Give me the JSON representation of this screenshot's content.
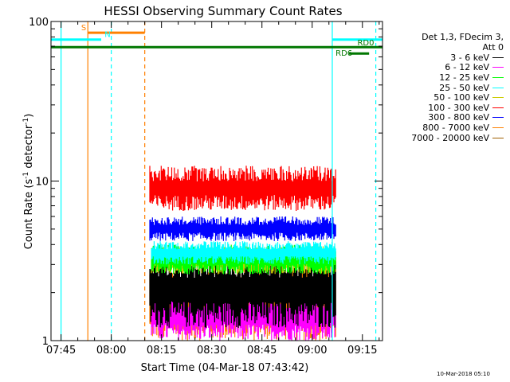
{
  "chart_data": {
    "type": "line",
    "title": "HESSI Observing Summary Count Rates",
    "xlabel": "Start Time (04-Mar-18 07:43:42)",
    "ylabel_main": "Count Rate (s",
    "ylabel_sup1": "-1",
    "ylabel_mid": " detector",
    "ylabel_sup2": "-1",
    "ylabel_end": ")",
    "yscale": "log",
    "ylim": [
      1,
      100
    ],
    "xlim_minutes": [
      -3,
      96
    ],
    "x_ticks": [
      {
        "label": "07:45",
        "min": 0
      },
      {
        "label": "08:00",
        "min": 15
      },
      {
        "label": "08:15",
        "min": 30
      },
      {
        "label": "08:30",
        "min": 45
      },
      {
        "label": "08:45",
        "min": 60
      },
      {
        "label": "09:00",
        "min": 75
      },
      {
        "label": "09:15",
        "min": 90
      }
    ],
    "y_ticks": [
      {
        "label": "1",
        "value": 1
      },
      {
        "label": "10",
        "value": 10
      },
      {
        "label": "100",
        "value": 100
      }
    ],
    "legend_header": [
      "Det 1,3, FDecim 3,",
      "Att 0"
    ],
    "series": [
      {
        "name": "3 - 6 keV",
        "color": "#000000",
        "start": 26.5,
        "end": 82,
        "lo": 1.2,
        "hi": 3.6
      },
      {
        "name": "6 - 12 keV",
        "color": "#ff00ff",
        "start": 27,
        "end": 82,
        "lo": 1.0,
        "hi": 2.0
      },
      {
        "name": "12 - 25 keV",
        "color": "#00ff00",
        "start": 27,
        "end": 82,
        "lo": 2.6,
        "hi": 4.0
      },
      {
        "name": "25 - 50 keV",
        "color": "#00ffff",
        "start": 27,
        "end": 82,
        "lo": 3.0,
        "hi": 4.2
      },
      {
        "name": "50 - 100 keV",
        "color": "#cccc00",
        "start": 27,
        "end": 82,
        "lo": 2.6,
        "hi": 3.9
      },
      {
        "name": "100 - 300 keV",
        "color": "#ff0000",
        "start": 26.5,
        "end": 82,
        "lo": 6.5,
        "hi": 12.5
      },
      {
        "name": "300 - 800 keV",
        "color": "#0000ff",
        "start": 26.5,
        "end": 82,
        "lo": 4.2,
        "hi": 6.0
      },
      {
        "name": "800 - 7000 keV",
        "color": "#ff8000",
        "start": 26.5,
        "end": 82,
        "lo": 1.0,
        "hi": 2.9
      },
      {
        "name": "7000 - 20000 keV",
        "color": "#a06000",
        "start": null,
        "end": null,
        "lo": null,
        "hi": null
      }
    ],
    "flags": [
      {
        "name": "S",
        "color": "#ff8000",
        "y": 85,
        "start": 8,
        "end": 25
      },
      {
        "name": "N",
        "color": "#00ffff",
        "y": 77,
        "start": -3,
        "end": 12
      },
      {
        "name": "N",
        "color": "#00ffff",
        "y": 77,
        "start": 81,
        "end": 96
      },
      {
        "name": "RD0",
        "color": "#007700",
        "y": 69,
        "start": -3,
        "end": 96
      },
      {
        "name": "RD6",
        "color": "#007700",
        "y": 63,
        "start": 86,
        "end": 92
      }
    ],
    "flag_labels": [
      {
        "text": "S",
        "color": "#ff8000",
        "min": 6,
        "y": 88
      },
      {
        "text": "N",
        "color": "#00ffff",
        "min": 13,
        "y": 80
      },
      {
        "text": "RD0",
        "color": "#007700",
        "min": 88.5,
        "y": 71
      },
      {
        "text": "RD6",
        "color": "#007700",
        "min": 82,
        "y": 61
      }
    ],
    "vlines": [
      {
        "min": 0,
        "color": "#00ffff",
        "style": "solid"
      },
      {
        "min": 8,
        "color": "#ff8000",
        "style": "solid"
      },
      {
        "min": 15,
        "color": "#00ffff",
        "style": "dash"
      },
      {
        "min": 25,
        "color": "#ff8000",
        "style": "dash"
      },
      {
        "min": 81,
        "color": "#00ffff",
        "style": "solid"
      },
      {
        "min": 94,
        "color": "#00ffff",
        "style": "dash"
      }
    ]
  },
  "timestamp": "10-Mar-2018 05:10"
}
